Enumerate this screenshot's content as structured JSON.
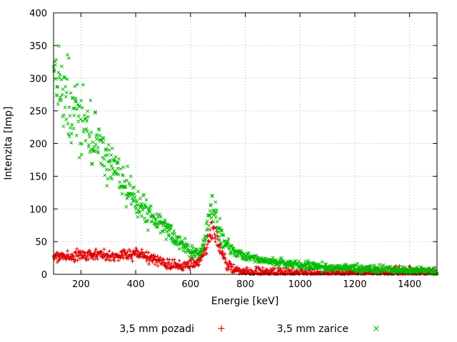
{
  "chart_data": {
    "type": "scatter",
    "title": "",
    "xlabel": "Energie [keV]",
    "ylabel": "Intenzita [Imp]",
    "xlim": [
      100,
      1500
    ],
    "ylim": [
      0,
      400
    ],
    "xticks": [
      200,
      400,
      600,
      800,
      1000,
      1200,
      1400
    ],
    "yticks": [
      0,
      50,
      100,
      150,
      200,
      250,
      300,
      350,
      400
    ],
    "grid": true,
    "grid_style": "dotted",
    "legend_position": "bottom-center",
    "border_color": "#000000",
    "grid_color": "#b0b0b0",
    "series": [
      {
        "name": "3,5 mm pozadi",
        "marker": "plus",
        "color": "#dd0000",
        "noise_frac": 0.14,
        "noise_min": 4,
        "trend": [
          [
            100,
            27
          ],
          [
            150,
            27
          ],
          [
            200,
            29
          ],
          [
            250,
            29
          ],
          [
            300,
            30
          ],
          [
            350,
            30
          ],
          [
            400,
            31
          ],
          [
            430,
            30
          ],
          [
            460,
            26
          ],
          [
            490,
            19
          ],
          [
            520,
            15
          ],
          [
            560,
            13
          ],
          [
            600,
            15
          ],
          [
            625,
            19
          ],
          [
            645,
            27
          ],
          [
            660,
            45
          ],
          [
            672,
            63
          ],
          [
            680,
            74
          ],
          [
            690,
            66
          ],
          [
            700,
            50
          ],
          [
            710,
            36
          ],
          [
            725,
            22
          ],
          [
            740,
            13
          ],
          [
            760,
            8
          ],
          [
            790,
            5
          ],
          [
            820,
            3.5
          ],
          [
            860,
            2.5
          ],
          [
            900,
            2
          ],
          [
            1000,
            2
          ],
          [
            1100,
            2
          ],
          [
            1250,
            2
          ],
          [
            1500,
            2
          ]
        ]
      },
      {
        "name": "3,5 mm zarice",
        "marker": "cross",
        "color": "#00bb00",
        "noise_frac": 0.12,
        "noise_min": 3,
        "trend": [
          [
            100,
            308
          ],
          [
            115,
            295
          ],
          [
            130,
            283
          ],
          [
            150,
            270
          ],
          [
            170,
            257
          ],
          [
            200,
            240
          ],
          [
            230,
            218
          ],
          [
            260,
            196
          ],
          [
            290,
            176
          ],
          [
            320,
            158
          ],
          [
            350,
            143
          ],
          [
            380,
            125
          ],
          [
            410,
            110
          ],
          [
            440,
            96
          ],
          [
            470,
            84
          ],
          [
            500,
            72
          ],
          [
            530,
            60
          ],
          [
            560,
            49
          ],
          [
            590,
            40
          ],
          [
            615,
            34
          ],
          [
            635,
            33
          ],
          [
            650,
            48
          ],
          [
            662,
            72
          ],
          [
            672,
            92
          ],
          [
            680,
            103
          ],
          [
            690,
            93
          ],
          [
            700,
            76
          ],
          [
            715,
            58
          ],
          [
            735,
            45
          ],
          [
            760,
            35
          ],
          [
            790,
            29
          ],
          [
            830,
            25
          ],
          [
            870,
            22
          ],
          [
            910,
            19
          ],
          [
            950,
            17
          ],
          [
            1000,
            14
          ],
          [
            1060,
            12
          ],
          [
            1120,
            10
          ],
          [
            1200,
            9
          ],
          [
            1300,
            7
          ],
          [
            1400,
            6
          ],
          [
            1500,
            5
          ]
        ]
      }
    ]
  }
}
